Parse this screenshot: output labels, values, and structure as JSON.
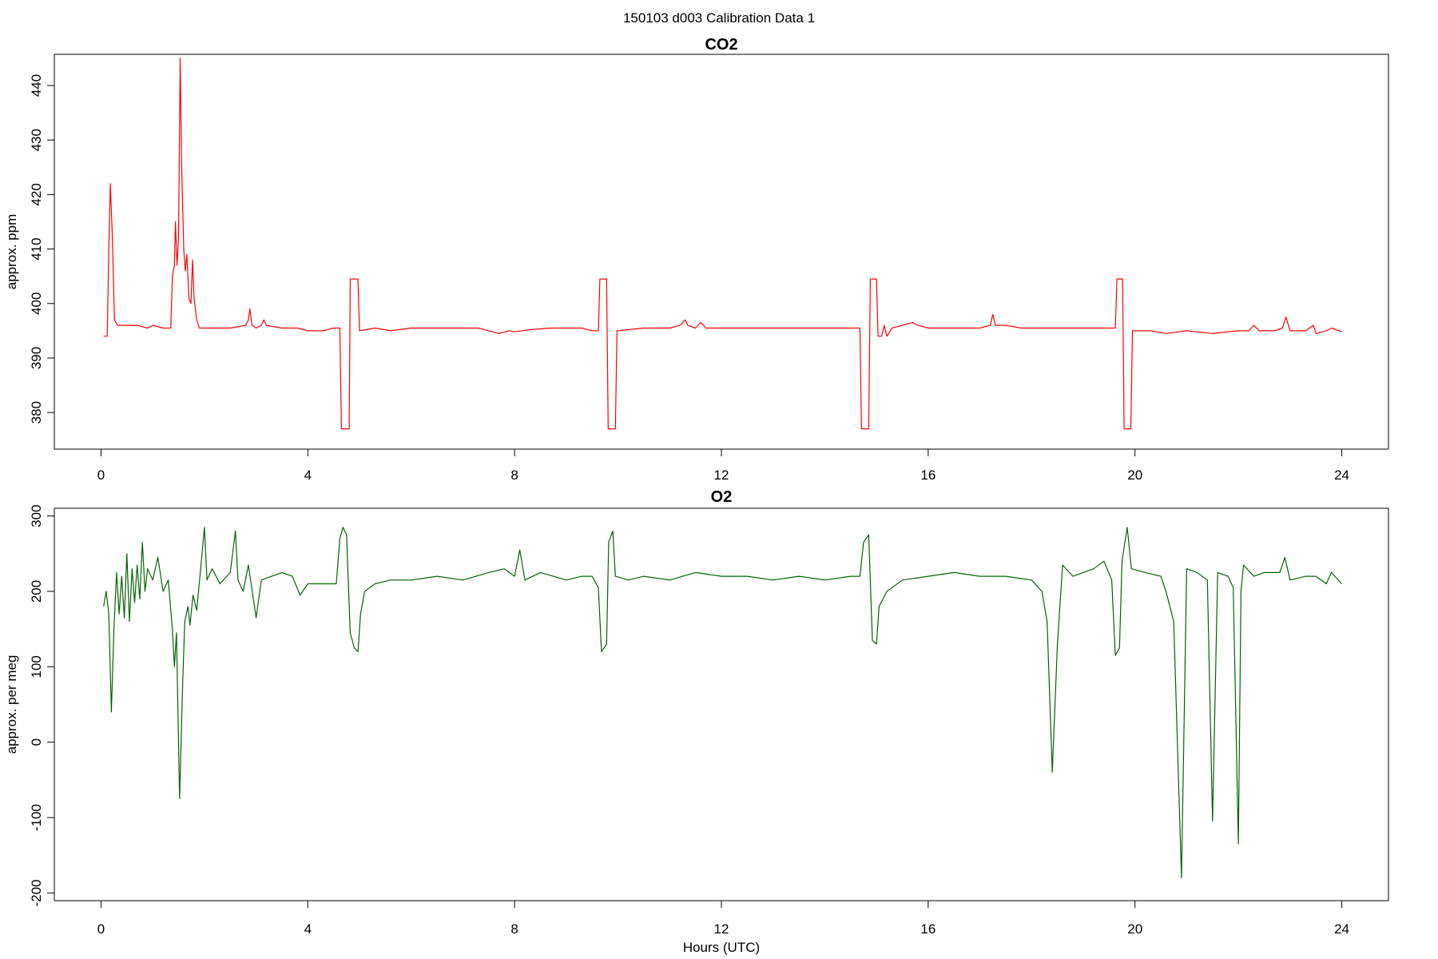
{
  "figure_title": "150103   d003   Calibration Data 1",
  "colors": {
    "co2": "#ff0000",
    "o2": "#006400",
    "axis": "#000000"
  },
  "chart_data": [
    {
      "type": "line",
      "title": "CO2",
      "xlabel": "",
      "ylabel": "approx. ppm",
      "xlim": [
        0,
        24
      ],
      "ylim": [
        374,
        445
      ],
      "xticks": [
        0,
        4,
        8,
        12,
        16,
        20,
        24
      ],
      "yticks": [
        380,
        390,
        400,
        410,
        420,
        430,
        440
      ],
      "series": [
        {
          "color": "#ff0000",
          "points": [
            [
              0.05,
              394
            ],
            [
              0.12,
              394
            ],
            [
              0.15,
              410
            ],
            [
              0.18,
              422
            ],
            [
              0.22,
              412
            ],
            [
              0.26,
              397
            ],
            [
              0.32,
              396
            ],
            [
              0.5,
              396
            ],
            [
              0.7,
              396
            ],
            [
              0.9,
              395.5
            ],
            [
              1.0,
              396
            ],
            [
              1.2,
              395.5
            ],
            [
              1.35,
              395.5
            ],
            [
              1.38,
              405
            ],
            [
              1.42,
              407
            ],
            [
              1.44,
              415
            ],
            [
              1.47,
              407
            ],
            [
              1.5,
              412
            ],
            [
              1.53,
              445
            ],
            [
              1.56,
              425
            ],
            [
              1.6,
              410
            ],
            [
              1.63,
              406
            ],
            [
              1.66,
              409
            ],
            [
              1.7,
              401
            ],
            [
              1.74,
              400
            ],
            [
              1.77,
              408
            ],
            [
              1.8,
              401
            ],
            [
              1.85,
              397
            ],
            [
              1.9,
              395.5
            ],
            [
              2.2,
              395.5
            ],
            [
              2.5,
              395.5
            ],
            [
              2.8,
              396
            ],
            [
              2.85,
              397
            ],
            [
              2.88,
              399
            ],
            [
              2.92,
              396
            ],
            [
              3.0,
              395.5
            ],
            [
              3.1,
              396
            ],
            [
              3.15,
              397
            ],
            [
              3.2,
              396
            ],
            [
              3.5,
              395.5
            ],
            [
              3.8,
              395.5
            ],
            [
              4.0,
              395
            ],
            [
              4.3,
              395
            ],
            [
              4.5,
              395.5
            ],
            [
              4.62,
              395.5
            ],
            [
              4.65,
              377
            ],
            [
              4.8,
              377
            ],
            [
              4.82,
              404.5
            ],
            [
              4.97,
              404.5
            ],
            [
              5.0,
              395
            ],
            [
              5.3,
              395.5
            ],
            [
              5.6,
              395
            ],
            [
              6.0,
              395.5
            ],
            [
              6.5,
              395.5
            ],
            [
              7.0,
              395.5
            ],
            [
              7.3,
              395.5
            ],
            [
              7.5,
              395
            ],
            [
              7.7,
              394.5
            ],
            [
              7.9,
              395
            ],
            [
              8.0,
              394.8
            ],
            [
              8.3,
              395.2
            ],
            [
              8.7,
              395.5
            ],
            [
              9.0,
              395.5
            ],
            [
              9.3,
              395.5
            ],
            [
              9.5,
              395
            ],
            [
              9.62,
              395
            ],
            [
              9.65,
              404.5
            ],
            [
              9.78,
              404.5
            ],
            [
              9.81,
              377
            ],
            [
              9.95,
              377
            ],
            [
              9.98,
              395
            ],
            [
              10.5,
              395.5
            ],
            [
              11.0,
              395.5
            ],
            [
              11.2,
              396
            ],
            [
              11.3,
              397
            ],
            [
              11.35,
              396
            ],
            [
              11.5,
              395.5
            ],
            [
              11.6,
              396.5
            ],
            [
              11.7,
              395.5
            ],
            [
              12.0,
              395.5
            ],
            [
              12.5,
              395.5
            ],
            [
              13.0,
              395.5
            ],
            [
              13.5,
              395.5
            ],
            [
              14.0,
              395.5
            ],
            [
              14.5,
              395.5
            ],
            [
              14.68,
              395.5
            ],
            [
              14.71,
              377
            ],
            [
              14.85,
              377
            ],
            [
              14.88,
              404.5
            ],
            [
              15.0,
              404.5
            ],
            [
              15.03,
              394
            ],
            [
              15.1,
              394
            ],
            [
              15.15,
              396
            ],
            [
              15.2,
              394
            ],
            [
              15.3,
              395.5
            ],
            [
              15.5,
              396
            ],
            [
              15.7,
              396.5
            ],
            [
              15.8,
              396
            ],
            [
              16.0,
              395.5
            ],
            [
              16.5,
              395.5
            ],
            [
              17.0,
              395.5
            ],
            [
              17.2,
              396
            ],
            [
              17.25,
              398
            ],
            [
              17.3,
              396
            ],
            [
              17.5,
              396
            ],
            [
              17.8,
              395.5
            ],
            [
              18.0,
              395.5
            ],
            [
              18.5,
              395.5
            ],
            [
              19.0,
              395.5
            ],
            [
              19.5,
              395.5
            ],
            [
              19.62,
              395.5
            ],
            [
              19.65,
              404.5
            ],
            [
              19.76,
              404.5
            ],
            [
              19.79,
              377
            ],
            [
              19.92,
              377
            ],
            [
              19.95,
              395
            ],
            [
              20.3,
              395
            ],
            [
              20.6,
              394.5
            ],
            [
              21.0,
              395
            ],
            [
              21.5,
              394.5
            ],
            [
              21.8,
              394.8
            ],
            [
              22.0,
              395
            ],
            [
              22.2,
              395
            ],
            [
              22.3,
              396
            ],
            [
              22.4,
              395
            ],
            [
              22.7,
              395
            ],
            [
              22.85,
              395.5
            ],
            [
              22.92,
              397.5
            ],
            [
              23.0,
              395
            ],
            [
              23.3,
              395
            ],
            [
              23.45,
              396
            ],
            [
              23.5,
              394.5
            ],
            [
              23.7,
              395
            ],
            [
              23.8,
              395.5
            ],
            [
              24.0,
              394.8
            ]
          ]
        }
      ]
    },
    {
      "type": "line",
      "title": "O2",
      "xlabel": "Hours (UTC)",
      "ylabel": "approx. per meg",
      "xlim": [
        0,
        24
      ],
      "ylim": [
        -205,
        305
      ],
      "xticks": [
        0,
        4,
        8,
        12,
        16,
        20,
        24
      ],
      "yticks": [
        -200,
        -100,
        0,
        100,
        200,
        300
      ],
      "series": [
        {
          "color": "#006400",
          "points": [
            [
              0.05,
              180
            ],
            [
              0.1,
              200
            ],
            [
              0.15,
              170
            ],
            [
              0.2,
              40
            ],
            [
              0.25,
              150
            ],
            [
              0.3,
              225
            ],
            [
              0.35,
              170
            ],
            [
              0.4,
              220
            ],
            [
              0.45,
              165
            ],
            [
              0.5,
              250
            ],
            [
              0.55,
              160
            ],
            [
              0.6,
              230
            ],
            [
              0.65,
              185
            ],
            [
              0.7,
              235
            ],
            [
              0.75,
              190
            ],
            [
              0.8,
              265
            ],
            [
              0.85,
              200
            ],
            [
              0.9,
              230
            ],
            [
              1.0,
              215
            ],
            [
              1.1,
              245
            ],
            [
              1.2,
              200
            ],
            [
              1.3,
              215
            ],
            [
              1.38,
              150
            ],
            [
              1.42,
              100
            ],
            [
              1.46,
              145
            ],
            [
              1.52,
              -75
            ],
            [
              1.58,
              80
            ],
            [
              1.62,
              160
            ],
            [
              1.68,
              180
            ],
            [
              1.72,
              155
            ],
            [
              1.78,
              195
            ],
            [
              1.85,
              175
            ],
            [
              1.92,
              225
            ],
            [
              2.0,
              285
            ],
            [
              2.05,
              215
            ],
            [
              2.15,
              230
            ],
            [
              2.3,
              210
            ],
            [
              2.5,
              225
            ],
            [
              2.6,
              280
            ],
            [
              2.65,
              215
            ],
            [
              2.75,
              200
            ],
            [
              2.85,
              235
            ],
            [
              3.0,
              165
            ],
            [
              3.1,
              215
            ],
            [
              3.3,
              220
            ],
            [
              3.5,
              225
            ],
            [
              3.7,
              220
            ],
            [
              3.85,
              195
            ],
            [
              4.0,
              210
            ],
            [
              4.3,
              210
            ],
            [
              4.55,
              210
            ],
            [
              4.62,
              270
            ],
            [
              4.68,
              285
            ],
            [
              4.75,
              275
            ],
            [
              4.82,
              145
            ],
            [
              4.9,
              125
            ],
            [
              4.97,
              120
            ],
            [
              5.02,
              170
            ],
            [
              5.1,
              200
            ],
            [
              5.3,
              210
            ],
            [
              5.6,
              215
            ],
            [
              6.0,
              215
            ],
            [
              6.5,
              220
            ],
            [
              7.0,
              215
            ],
            [
              7.5,
              225
            ],
            [
              7.8,
              230
            ],
            [
              8.0,
              220
            ],
            [
              8.1,
              255
            ],
            [
              8.2,
              215
            ],
            [
              8.5,
              225
            ],
            [
              9.0,
              215
            ],
            [
              9.3,
              220
            ],
            [
              9.5,
              220
            ],
            [
              9.62,
              205
            ],
            [
              9.68,
              120
            ],
            [
              9.78,
              130
            ],
            [
              9.82,
              265
            ],
            [
              9.9,
              280
            ],
            [
              9.95,
              220
            ],
            [
              10.2,
              215
            ],
            [
              10.5,
              220
            ],
            [
              11.0,
              215
            ],
            [
              11.5,
              225
            ],
            [
              12.0,
              220
            ],
            [
              12.5,
              220
            ],
            [
              13.0,
              215
            ],
            [
              13.5,
              220
            ],
            [
              14.0,
              215
            ],
            [
              14.5,
              220
            ],
            [
              14.68,
              220
            ],
            [
              14.75,
              265
            ],
            [
              14.85,
              275
            ],
            [
              14.92,
              135
            ],
            [
              15.0,
              130
            ],
            [
              15.05,
              180
            ],
            [
              15.2,
              200
            ],
            [
              15.5,
              215
            ],
            [
              16.0,
              220
            ],
            [
              16.5,
              225
            ],
            [
              17.0,
              220
            ],
            [
              17.5,
              220
            ],
            [
              18.0,
              215
            ],
            [
              18.2,
              200
            ],
            [
              18.3,
              160
            ],
            [
              18.4,
              -40
            ],
            [
              18.5,
              130
            ],
            [
              18.6,
              235
            ],
            [
              18.8,
              220
            ],
            [
              19.0,
              225
            ],
            [
              19.2,
              230
            ],
            [
              19.4,
              240
            ],
            [
              19.55,
              215
            ],
            [
              19.62,
              115
            ],
            [
              19.7,
              125
            ],
            [
              19.75,
              240
            ],
            [
              19.85,
              285
            ],
            [
              19.93,
              230
            ],
            [
              20.2,
              225
            ],
            [
              20.5,
              220
            ],
            [
              20.6,
              200
            ],
            [
              20.75,
              160
            ],
            [
              20.9,
              -180
            ],
            [
              21.0,
              230
            ],
            [
              21.2,
              225
            ],
            [
              21.4,
              215
            ],
            [
              21.5,
              -105
            ],
            [
              21.6,
              225
            ],
            [
              21.8,
              220
            ],
            [
              21.9,
              205
            ],
            [
              22.0,
              -135
            ],
            [
              22.05,
              200
            ],
            [
              22.1,
              235
            ],
            [
              22.3,
              220
            ],
            [
              22.5,
              225
            ],
            [
              22.8,
              225
            ],
            [
              22.9,
              245
            ],
            [
              23.0,
              215
            ],
            [
              23.3,
              220
            ],
            [
              23.5,
              220
            ],
            [
              23.7,
              210
            ],
            [
              23.8,
              225
            ],
            [
              24.0,
              210
            ]
          ]
        }
      ]
    }
  ]
}
